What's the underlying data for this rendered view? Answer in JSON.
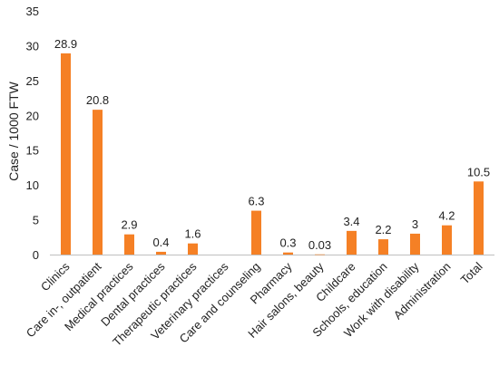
{
  "chart_data": {
    "type": "bar",
    "ylabel": "Case / 1000 FTW",
    "xlabel": "",
    "ylim": [
      0,
      35
    ],
    "yticks": [
      0,
      5,
      10,
      15,
      20,
      25,
      30,
      35
    ],
    "grid": false,
    "legend": "none",
    "bar_color": "#F58025",
    "categories": [
      "Clinics",
      "Care in-, outpatient",
      "Medical practices",
      "Dental practices",
      "Therapeutic practices",
      "Veterinary practices",
      "Care and counseling",
      "Pharmacy",
      "Hair salons, beauty",
      "Childcare",
      "Schools, education",
      "Work with disability",
      "Administration",
      "Total"
    ],
    "values": [
      28.9,
      20.8,
      2.9,
      0.4,
      1.6,
      null,
      6.3,
      0.3,
      0.03,
      3.4,
      2.2,
      3,
      4.2,
      10.5
    ],
    "data_labels": [
      "28.9",
      "20.8",
      "2.9",
      "0.4",
      "1.6",
      "",
      "6.3",
      "0.3",
      "0.03",
      "3.4",
      "2.2",
      "3",
      "4.2",
      "10.5"
    ]
  }
}
